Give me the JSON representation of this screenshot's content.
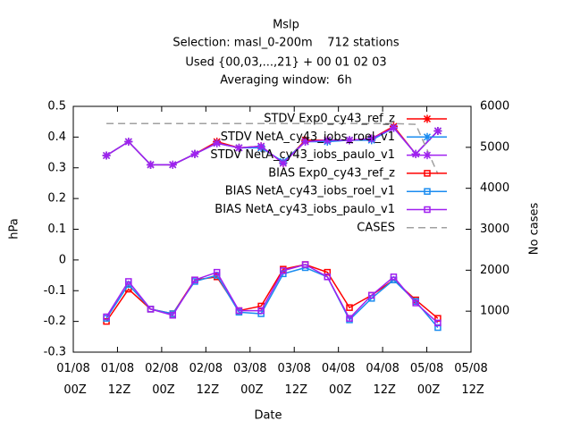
{
  "chart_data": {
    "type": "line",
    "title": "Mslp",
    "subtitle": [
      "Selection: masl_0-200m    712 stations",
      "Used {00,03,...,21} + 00 01 02 03",
      "Averaging window:  6h"
    ],
    "xlabel": "Date",
    "ylabel": "hPa",
    "y2label": "No cases",
    "x": [
      "01/08 09Z",
      "01/08 15Z",
      "01/08 21Z",
      "02/08 03Z",
      "02/08 09Z",
      "02/08 15Z",
      "02/08 21Z",
      "03/08 03Z",
      "03/08 09Z",
      "03/08 15Z",
      "03/08 21Z",
      "04/08 03Z",
      "04/08 09Z",
      "04/08 15Z",
      "04/08 21Z",
      "05/08 03Z"
    ],
    "xlim": [
      "01/08 00Z",
      "05/08 12Z"
    ],
    "xticks": [
      "01/08 00Z",
      "01/08 12Z",
      "02/08 00Z",
      "02/08 12Z",
      "03/08 00Z",
      "03/08 12Z",
      "04/08 00Z",
      "04/08 12Z",
      "05/08 00Z",
      "05/08 12Z"
    ],
    "ylim": [
      -0.3,
      0.5
    ],
    "yticks": [
      -0.3,
      -0.2,
      -0.1,
      0,
      0.1,
      0.2,
      0.3,
      0.4,
      0.5
    ],
    "y2lim": [
      0,
      6000
    ],
    "y2ticks": [
      1000,
      2000,
      3000,
      4000,
      5000,
      6000
    ],
    "legend": "top-right",
    "grid": false,
    "series": [
      {
        "name": "STDV Exp0_cy43_ref_z",
        "color": "#ff0000",
        "marker": "star",
        "values": [
          0.34,
          0.385,
          0.31,
          0.31,
          0.345,
          0.385,
          0.365,
          0.37,
          0.315,
          0.39,
          0.39,
          0.39,
          0.395,
          0.435,
          0.345,
          0.42
        ]
      },
      {
        "name": "STDV NetA_cy43_iobs_roel_v1",
        "color": "#1a8cf0",
        "marker": "star",
        "values": [
          0.34,
          0.385,
          0.31,
          0.31,
          0.345,
          0.38,
          0.365,
          0.365,
          0.32,
          0.385,
          0.385,
          0.39,
          0.39,
          0.43,
          0.345,
          0.42
        ]
      },
      {
        "name": "STDV NetA_cy43_iobs_paulo_v1",
        "color": "#a020f0",
        "marker": "star",
        "values": [
          0.34,
          0.385,
          0.31,
          0.31,
          0.345,
          0.38,
          0.365,
          0.37,
          0.315,
          0.385,
          0.39,
          0.39,
          0.395,
          0.43,
          0.345,
          0.42
        ]
      },
      {
        "name": "BIAS Exp0_cy43_ref_z",
        "color": "#ff0000",
        "marker": "square",
        "values": [
          -0.2,
          -0.095,
          -0.16,
          -0.175,
          -0.065,
          -0.055,
          -0.165,
          -0.15,
          -0.03,
          -0.015,
          -0.04,
          -0.155,
          -0.115,
          -0.065,
          -0.13,
          -0.19
        ]
      },
      {
        "name": "BIAS NetA_cy43_iobs_roel_v1",
        "color": "#1a8cf0",
        "marker": "square",
        "values": [
          -0.19,
          -0.08,
          -0.16,
          -0.175,
          -0.07,
          -0.05,
          -0.17,
          -0.175,
          -0.045,
          -0.025,
          -0.055,
          -0.195,
          -0.125,
          -0.065,
          -0.135,
          -0.22
        ]
      },
      {
        "name": "BIAS NetA_cy43_iobs_paulo_v1",
        "color": "#a020f0",
        "marker": "square",
        "values": [
          -0.185,
          -0.07,
          -0.16,
          -0.18,
          -0.065,
          -0.04,
          -0.165,
          -0.165,
          -0.035,
          -0.015,
          -0.055,
          -0.19,
          -0.115,
          -0.055,
          -0.14,
          -0.205
        ]
      },
      {
        "name": "CASES",
        "color": "#a0a0a0",
        "dashed": true,
        "axis": "y2",
        "values": [
          5580,
          5580,
          5580,
          5580,
          5580,
          5580,
          5580,
          5580,
          5580,
          5580,
          5580,
          5580,
          5580,
          5580,
          5560,
          4350
        ]
      }
    ]
  }
}
